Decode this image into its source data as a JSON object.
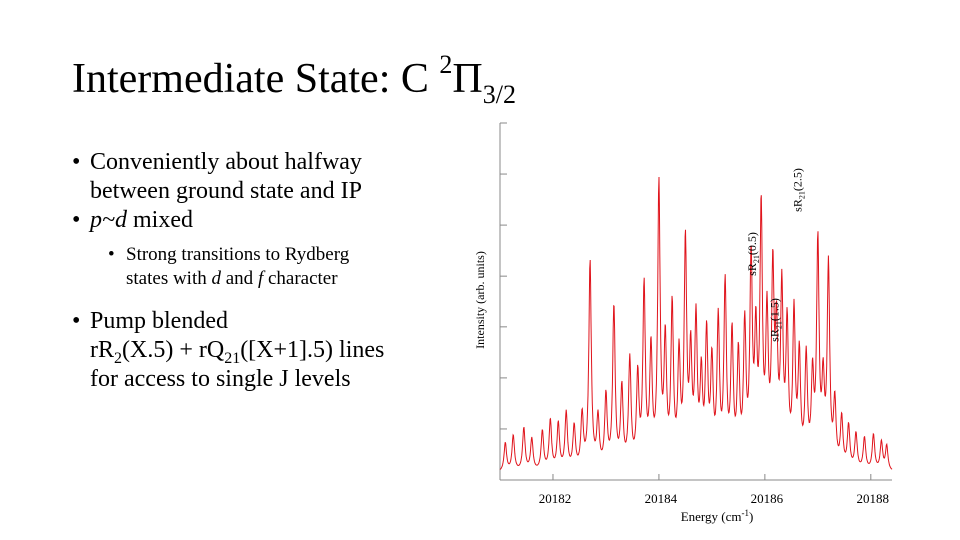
{
  "slide": {
    "title_main": "Intermediate State: C ",
    "title_sup": "2",
    "title_pi": "Π",
    "title_sub": "3/2"
  },
  "bullets": {
    "b1_line1": "Conveniently about halfway",
    "b1_line2": "between ground state and IP",
    "b2_text": "p~d",
    "b2_suffix": " mixed",
    "b3_pre": "Strong transitions to Rydberg",
    "b3_line2_pre": "states with ",
    "b3_d": "d",
    "b3_and": " and ",
    "b3_f": "f",
    "b3_character": " character",
    "b4_line1": "Pump blended",
    "b4_r": "rR",
    "b4_r_sub": "2",
    "b4_x": "(X.5) + rQ",
    "b4_q_sub": "21",
    "b4_x2": "([X+1].5) lines",
    "b4_line3": "for access to single J levels",
    "bullet_char": "•"
  },
  "chart_data": {
    "type": "line",
    "title": "",
    "xlabel": "Energy (cm-1)",
    "ylabel": "Intensity (arb. units)",
    "xlim": [
      20181.0,
      20188.4
    ],
    "ylim": [
      0,
      1
    ],
    "x_ticks": [
      20182,
      20184,
      20186,
      20188
    ],
    "y_ticks": [
      0,
      0.143,
      0.286,
      0.429,
      0.571,
      0.714,
      0.857,
      1.0
    ],
    "series": [
      {
        "name": "spectrum",
        "color": "#e0141c",
        "peaks": [
          {
            "x": 20181.1,
            "h": 0.08
          },
          {
            "x": 20181.25,
            "h": 0.1
          },
          {
            "x": 20181.45,
            "h": 0.12
          },
          {
            "x": 20181.6,
            "h": 0.09
          },
          {
            "x": 20181.8,
            "h": 0.11
          },
          {
            "x": 20181.95,
            "h": 0.14
          },
          {
            "x": 20182.1,
            "h": 0.13
          },
          {
            "x": 20182.25,
            "h": 0.16
          },
          {
            "x": 20182.4,
            "h": 0.12
          },
          {
            "x": 20182.55,
            "h": 0.15
          },
          {
            "x": 20182.7,
            "h": 0.58
          },
          {
            "x": 20182.85,
            "h": 0.14
          },
          {
            "x": 20183.0,
            "h": 0.2
          },
          {
            "x": 20183.15,
            "h": 0.45
          },
          {
            "x": 20183.3,
            "h": 0.22
          },
          {
            "x": 20183.45,
            "h": 0.3
          },
          {
            "x": 20183.6,
            "h": 0.25
          },
          {
            "x": 20183.72,
            "h": 0.5
          },
          {
            "x": 20183.85,
            "h": 0.32
          },
          {
            "x": 20184.0,
            "h": 0.78
          },
          {
            "x": 20184.12,
            "h": 0.34
          },
          {
            "x": 20184.25,
            "h": 0.44
          },
          {
            "x": 20184.38,
            "h": 0.3
          },
          {
            "x": 20184.5,
            "h": 0.62
          },
          {
            "x": 20184.6,
            "h": 0.3
          },
          {
            "x": 20184.7,
            "h": 0.4
          },
          {
            "x": 20184.8,
            "h": 0.24
          },
          {
            "x": 20184.9,
            "h": 0.36
          },
          {
            "x": 20185.0,
            "h": 0.28
          },
          {
            "x": 20185.12,
            "h": 0.4
          },
          {
            "x": 20185.25,
            "h": 0.5
          },
          {
            "x": 20185.38,
            "h": 0.36
          },
          {
            "x": 20185.5,
            "h": 0.3
          },
          {
            "x": 20185.62,
            "h": 0.38
          },
          {
            "x": 20185.74,
            "h": 0.56
          },
          {
            "x": 20185.83,
            "h": 0.34
          },
          {
            "x": 20185.93,
            "h": 0.7
          },
          {
            "x": 20186.04,
            "h": 0.4
          },
          {
            "x": 20186.15,
            "h": 0.52
          },
          {
            "x": 20186.22,
            "h": 0.34
          },
          {
            "x": 20186.32,
            "h": 0.48
          },
          {
            "x": 20186.42,
            "h": 0.38
          },
          {
            "x": 20186.55,
            "h": 0.42
          },
          {
            "x": 20186.65,
            "h": 0.3
          },
          {
            "x": 20186.78,
            "h": 0.3
          },
          {
            "x": 20186.9,
            "h": 0.24
          },
          {
            "x": 20187.0,
            "h": 0.62
          },
          {
            "x": 20187.1,
            "h": 0.22
          },
          {
            "x": 20187.2,
            "h": 0.56
          },
          {
            "x": 20187.32,
            "h": 0.18
          },
          {
            "x": 20187.45,
            "h": 0.14
          },
          {
            "x": 20187.58,
            "h": 0.12
          },
          {
            "x": 20187.72,
            "h": 0.1
          },
          {
            "x": 20187.88,
            "h": 0.09
          },
          {
            "x": 20188.05,
            "h": 0.1
          },
          {
            "x": 20188.2,
            "h": 0.08
          },
          {
            "x": 20188.3,
            "h": 0.07
          }
        ]
      }
    ],
    "annotations": [
      {
        "x": 20185.76,
        "label_main": "sR",
        "label_sub": "21",
        "label_tail": "(0.5)"
      },
      {
        "x": 20186.18,
        "label_main": "sR",
        "label_sub": "21",
        "label_tail": "(1.5)"
      },
      {
        "x": 20186.62,
        "label_main": "sR",
        "label_sub": "21",
        "label_tail": "(2.5)"
      }
    ],
    "axis_label_x_main": "Energy (cm",
    "axis_label_x_sup": "-1",
    "axis_label_x_tail": ")"
  }
}
